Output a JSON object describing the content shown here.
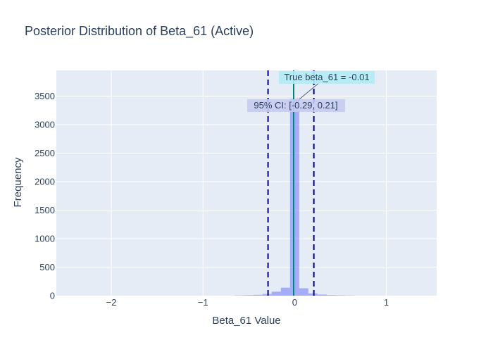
{
  "chart_data": {
    "type": "bar",
    "title": "Posterior Distribution of Beta_61 (Active)",
    "xlabel": "Beta_61 Value",
    "ylabel": "Frequency",
    "xlim": [
      -2.6,
      1.55
    ],
    "ylim": [
      0,
      3950
    ],
    "x_ticks": [
      -2,
      -1,
      0,
      1
    ],
    "x_tick_labels": [
      "−2",
      "−1",
      "0",
      "1"
    ],
    "y_ticks": [
      0,
      500,
      1000,
      1500,
      2000,
      2500,
      3000,
      3500
    ],
    "y_tick_labels": [
      "0",
      "500",
      "1000",
      "1500",
      "2000",
      "2500",
      "3000",
      "3500"
    ],
    "grid": true,
    "bin_width": 0.1,
    "bins": [
      {
        "x0": -0.65,
        "x1": -0.55,
        "count": 5
      },
      {
        "x0": -0.55,
        "x1": -0.45,
        "count": 8
      },
      {
        "x0": -0.45,
        "x1": -0.35,
        "count": 15
      },
      {
        "x0": -0.35,
        "x1": -0.25,
        "count": 30
      },
      {
        "x0": -0.25,
        "x1": -0.15,
        "count": 70
      },
      {
        "x0": -0.15,
        "x1": -0.05,
        "count": 140
      },
      {
        "x0": -0.05,
        "x1": 0.05,
        "count": 3450
      },
      {
        "x0": 0.05,
        "x1": 0.15,
        "count": 130
      },
      {
        "x0": 0.15,
        "x1": 0.25,
        "count": 40
      },
      {
        "x0": 0.25,
        "x1": 0.35,
        "count": 20
      },
      {
        "x0": 0.35,
        "x1": 0.45,
        "count": 10
      },
      {
        "x0": 0.45,
        "x1": 0.55,
        "count": 6
      },
      {
        "x0": 0.55,
        "x1": 0.65,
        "count": 3
      }
    ],
    "true_value": -0.01,
    "ci_lower": -0.29,
    "ci_upper": 0.21,
    "annotations": {
      "true_label": "True beta_61 = -0.01",
      "ci_label": "95% CI: [-0.29, 0.21]"
    },
    "colors": {
      "plot_bg": "#e5ecf6",
      "grid": "#ffffff",
      "bars": "#636efa",
      "true_line": "#008080",
      "ci_line": "#00008b",
      "true_label_bg": "#b3ecf5",
      "ci_label_bg": "#c6cbf0",
      "text": "#2a3f5f"
    }
  }
}
